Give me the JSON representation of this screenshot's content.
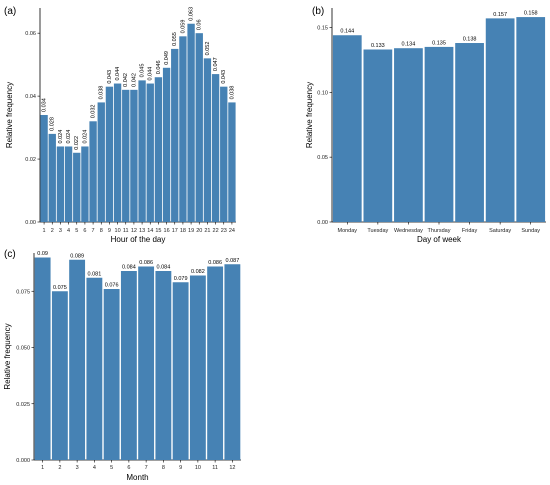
{
  "chart_data": [
    {
      "panel": "(a)",
      "type": "bar",
      "xlabel": "Hour of the day",
      "ylabel": "Relative frequency",
      "ylim": [
        0,
        0.068
      ],
      "yticks": [
        0.0,
        0.02,
        0.04,
        0.06
      ],
      "ytick_labels": [
        "0.00",
        "0.02",
        "0.04",
        "0.06"
      ],
      "categories": [
        "1",
        "2",
        "3",
        "4",
        "5",
        "6",
        "7",
        "8",
        "9",
        "10",
        "11",
        "12",
        "13",
        "14",
        "15",
        "16",
        "17",
        "18",
        "19",
        "20",
        "21",
        "22",
        "23",
        "24"
      ],
      "values": [
        0.034,
        0.028,
        0.024,
        0.024,
        0.022,
        0.024,
        0.032,
        0.038,
        0.043,
        0.044,
        0.042,
        0.042,
        0.045,
        0.044,
        0.046,
        0.049,
        0.055,
        0.059,
        0.063,
        0.06,
        0.052,
        0.047,
        0.043,
        0.038
      ],
      "value_labels": [
        "0.034",
        "0.028",
        "0.024",
        "0.024",
        "0.022",
        "0.024",
        "0.032",
        "0.038",
        "0.043",
        "0.044",
        "0.042",
        "0.042",
        "0.045",
        "0.044",
        "0.046",
        "0.049",
        "0.055",
        "0.059",
        "0.063",
        "0.06",
        "0.052",
        "0.047",
        "0.043",
        "0.038"
      ],
      "label_orientation": "vertical",
      "bar_color": "#4682b4",
      "grid": false
    },
    {
      "panel": "(b)",
      "type": "bar",
      "xlabel": "Day of week",
      "ylabel": "Relative frequency",
      "ylim": [
        0,
        0.165
      ],
      "yticks": [
        0.0,
        0.05,
        0.1,
        0.15
      ],
      "ytick_labels": [
        "0.00",
        "0.05",
        "0.10",
        "0.15"
      ],
      "categories": [
        "Monday",
        "Tuesday",
        "Wednesday",
        "Thursday",
        "Friday",
        "Saturday",
        "Sunday"
      ],
      "values": [
        0.144,
        0.133,
        0.134,
        0.135,
        0.138,
        0.157,
        0.158
      ],
      "value_labels": [
        "0.144",
        "0.133",
        "0.134",
        "0.135",
        "0.138",
        "0.157",
        "0.158"
      ],
      "label_orientation": "horizontal",
      "bar_color": "#4682b4",
      "grid": false
    },
    {
      "panel": "(c)",
      "type": "bar",
      "xlabel": "Month",
      "ylabel": "Relative frequency",
      "ylim": [
        0,
        0.092
      ],
      "yticks": [
        0.0,
        0.025,
        0.05,
        0.075
      ],
      "ytick_labels": [
        "0.000",
        "0.025",
        "0.050",
        "0.075"
      ],
      "categories": [
        "1",
        "2",
        "3",
        "4",
        "5",
        "6",
        "7",
        "8",
        "9",
        "10",
        "11",
        "12"
      ],
      "values": [
        0.09,
        0.075,
        0.089,
        0.081,
        0.076,
        0.084,
        0.086,
        0.084,
        0.079,
        0.082,
        0.086,
        0.087
      ],
      "value_labels": [
        "0.09",
        "0.075",
        "0.089",
        "0.081",
        "0.076",
        "0.084",
        "0.086",
        "0.084",
        "0.079",
        "0.082",
        "0.086",
        "0.087"
      ],
      "label_orientation": "horizontal",
      "bar_color": "#4682b4",
      "grid": false
    }
  ]
}
